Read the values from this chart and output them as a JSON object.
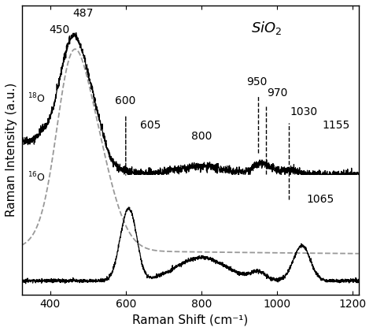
{
  "xlim": [
    325,
    1215
  ],
  "xlabel": "Raman Shift (cm⁻¹)",
  "ylabel": "Raman Intensity (a.u.)",
  "sio2_label": "SiO$_2$",
  "background_color": "#ffffff",
  "line_color": "#000000",
  "gray_color": "#999999"
}
